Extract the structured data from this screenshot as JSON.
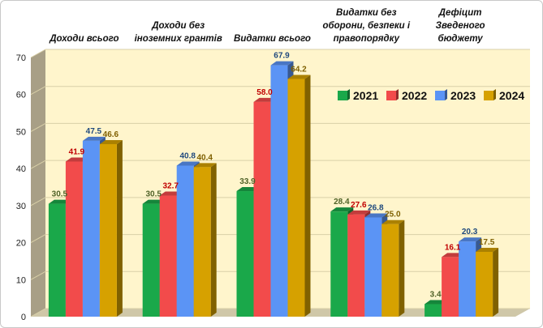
{
  "chart_data": {
    "type": "bar",
    "title": "",
    "xlabel": "",
    "ylabel": "",
    "ylim": [
      0,
      70
    ],
    "yticks": [
      0,
      10,
      20,
      30,
      40,
      50,
      60,
      70
    ],
    "categories": [
      [
        "Доходи всього"
      ],
      [
        "Доходи без",
        "іноземних грантів"
      ],
      [
        "Видатки всього"
      ],
      [
        "Видатки без",
        "оборони, безпеки і",
        "правопорядку"
      ],
      [
        "Дефіцит",
        "Зведеного",
        "бюджету"
      ]
    ],
    "series": [
      {
        "name": "2021",
        "color": "#1aa84a",
        "label_color": "#4f6228",
        "values": [
          30.5,
          30.5,
          33.9,
          28.4,
          3.4
        ]
      },
      {
        "name": "2022",
        "color": "#f24b4b",
        "label_color": "#c00000",
        "values": [
          41.9,
          32.7,
          58.0,
          27.6,
          16.1
        ]
      },
      {
        "name": "2023",
        "color": "#5b94f5",
        "label_color": "#1f497d",
        "values": [
          47.5,
          40.8,
          67.9,
          26.8,
          20.3
        ]
      },
      {
        "name": "2024",
        "color": "#d6a100",
        "label_color": "#7f6000",
        "values": [
          46.6,
          40.4,
          64.2,
          25.0,
          17.5
        ]
      }
    ],
    "legend_position": "right",
    "grid": true,
    "background": "#fff5cc"
  }
}
